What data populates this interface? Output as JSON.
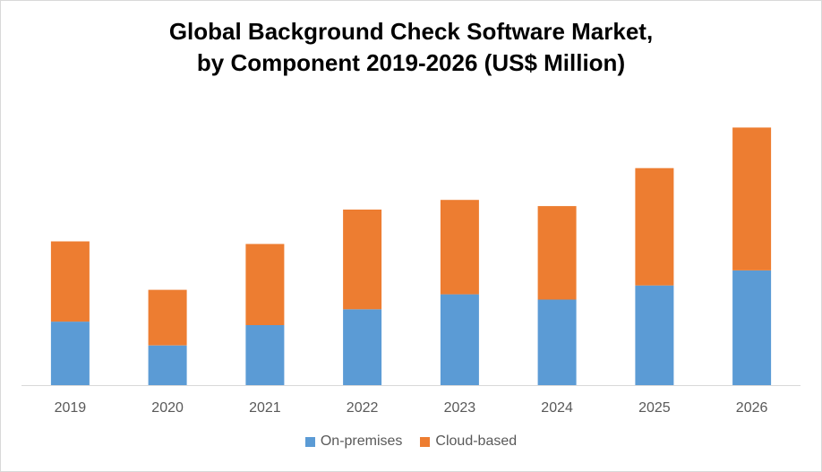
{
  "chart_data": {
    "type": "bar",
    "stacked": true,
    "title": "Global Background Check Software Market, by Component 2019-2026 (US$ Million)",
    "title_lines": [
      "Global Background Check Software Market,",
      "by Component 2019-2026 (US$ Million)"
    ],
    "categories": [
      "2019",
      "2020",
      "2021",
      "2022",
      "2023",
      "2024",
      "2025",
      "2026"
    ],
    "series": [
      {
        "name": "On-premises",
        "color": "#5b9bd5",
        "values": [
          72,
          45,
          68,
          86,
          103,
          97,
          113,
          130
        ]
      },
      {
        "name": "Cloud-based",
        "color": "#ed7d31",
        "values": [
          91,
          63,
          92,
          113,
          107,
          106,
          133,
          162
        ]
      }
    ],
    "ylim": [
      0,
      330
    ],
    "grid": false,
    "y_axis_visible": false,
    "legend": "bottom"
  }
}
